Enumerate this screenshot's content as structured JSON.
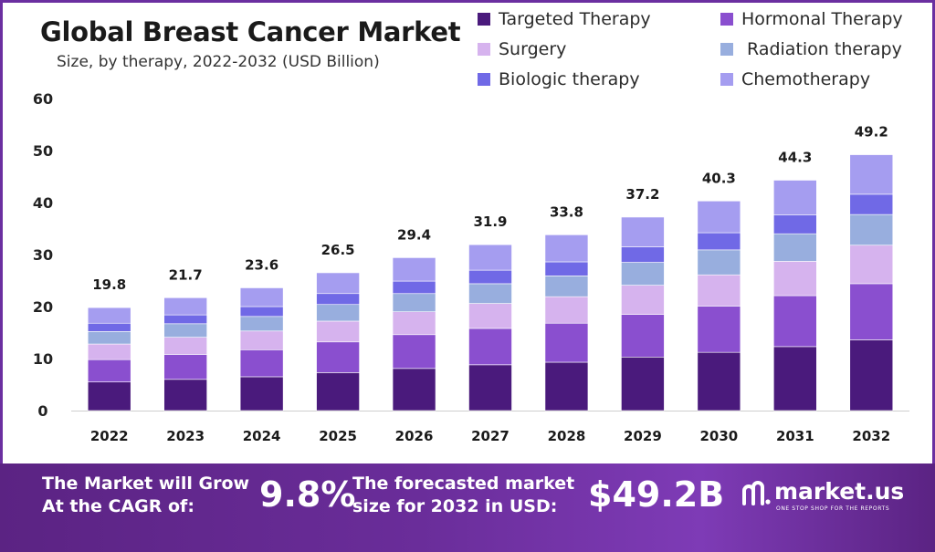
{
  "title": "Global Breast Cancer Market",
  "subtitle": "Size, by therapy, 2022-2032 (USD Billion)",
  "legend": [
    {
      "label": "Targeted Therapy",
      "color": "#4a1a7c"
    },
    {
      "label": "Hormonal Therapy",
      "color": "#8a4fcf"
    },
    {
      "label": "Surgery",
      "color": "#d6b3ee"
    },
    {
      "label": " Radiation therapy",
      "color": "#98aede"
    },
    {
      "label": "Biologic therapy",
      "color": "#7069e6"
    },
    {
      "label": "Chemotherapy",
      "color": "#a59df0"
    }
  ],
  "chart_data": {
    "type": "bar",
    "stacked": true,
    "categories": [
      "2022",
      "2023",
      "2024",
      "2025",
      "2026",
      "2027",
      "2028",
      "2029",
      "2030",
      "2031",
      "2032"
    ],
    "totals": [
      "19.8",
      "21.7",
      "23.6",
      "26.5",
      "29.4",
      "31.9",
      "33.8",
      "37.2",
      "40.3",
      "44.3",
      "49.2"
    ],
    "ylim": [
      0,
      60
    ],
    "yticks": [
      "0",
      "10",
      "20",
      "30",
      "40",
      "50",
      "60"
    ],
    "grid": false,
    "legend_position": "top-right",
    "series": [
      {
        "name": "Targeted Therapy",
        "color": "#4a1a7c",
        "values": [
          5.5,
          6.0,
          6.5,
          7.3,
          8.1,
          8.8,
          9.3,
          10.3,
          11.2,
          12.3,
          13.6
        ]
      },
      {
        "name": "Hormonal Therapy",
        "color": "#8a4fcf",
        "values": [
          4.3,
          4.8,
          5.2,
          5.9,
          6.5,
          7.0,
          7.5,
          8.2,
          8.9,
          9.8,
          10.8
        ]
      },
      {
        "name": "Surgery",
        "color": "#d6b3ee",
        "values": [
          3.0,
          3.3,
          3.6,
          4.0,
          4.4,
          4.8,
          5.1,
          5.6,
          6.0,
          6.6,
          7.4
        ]
      },
      {
        "name": " Radiation therapy",
        "color": "#98aede",
        "values": [
          2.4,
          2.6,
          2.8,
          3.2,
          3.5,
          3.8,
          4.0,
          4.4,
          4.8,
          5.3,
          5.9
        ]
      },
      {
        "name": "Biologic therapy",
        "color": "#7069e6",
        "values": [
          1.6,
          1.7,
          1.9,
          2.1,
          2.4,
          2.6,
          2.7,
          3.0,
          3.3,
          3.6,
          3.9
        ]
      },
      {
        "name": "Chemotherapy",
        "color": "#a59df0",
        "values": [
          3.0,
          3.3,
          3.6,
          4.0,
          4.5,
          4.9,
          5.2,
          5.7,
          6.1,
          6.7,
          7.6
        ]
      }
    ]
  },
  "footer": {
    "cagr_label": "The Market will Grow At the CAGR of:",
    "cagr_value": "9.8%",
    "forecast_label": "The forecasted market size for 2032 in USD:",
    "forecast_value": "$49.2B",
    "brand_name": "market.us",
    "brand_tagline": "ONE STOP SHOP FOR THE REPORTS"
  }
}
